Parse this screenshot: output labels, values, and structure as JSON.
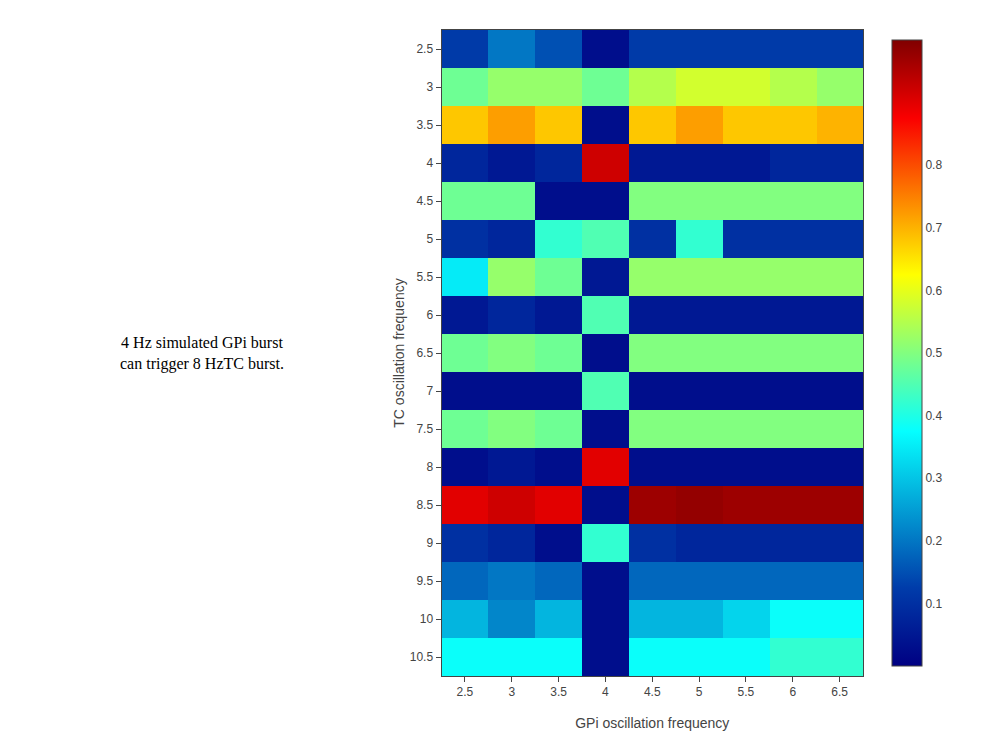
{
  "chart_data": {
    "type": "heatmap",
    "xlabel": "GPi oscillation frequency",
    "ylabel": "TC oscillation frequency",
    "annotation": "4 Hz simulated GPi burst\ncan trigger 8 HzTC burst.",
    "x": [
      2.5,
      3.0,
      3.5,
      4.0,
      4.5,
      5.0,
      5.5,
      6.0,
      6.5
    ],
    "y": [
      2.5,
      3.0,
      3.5,
      4.0,
      4.5,
      5.0,
      5.5,
      6.0,
      6.5,
      7.0,
      7.5,
      8.0,
      8.5,
      9.0,
      9.5,
      10.0,
      10.5
    ],
    "values": [
      [
        0.12,
        0.2,
        0.15,
        0.03,
        0.12,
        0.12,
        0.12,
        0.12,
        0.12
      ],
      [
        0.48,
        0.52,
        0.52,
        0.48,
        0.55,
        0.58,
        0.58,
        0.55,
        0.52
      ],
      [
        0.68,
        0.72,
        0.68,
        0.03,
        0.68,
        0.72,
        0.68,
        0.68,
        0.7
      ],
      [
        0.08,
        0.05,
        0.08,
        0.92,
        0.05,
        0.05,
        0.05,
        0.08,
        0.08
      ],
      [
        0.48,
        0.48,
        0.03,
        0.03,
        0.5,
        0.5,
        0.5,
        0.5,
        0.5
      ],
      [
        0.1,
        0.08,
        0.42,
        0.45,
        0.1,
        0.42,
        0.1,
        0.1,
        0.1
      ],
      [
        0.35,
        0.52,
        0.48,
        0.05,
        0.52,
        0.52,
        0.52,
        0.52,
        0.52
      ],
      [
        0.05,
        0.08,
        0.05,
        0.45,
        0.05,
        0.05,
        0.05,
        0.05,
        0.05
      ],
      [
        0.48,
        0.5,
        0.48,
        0.03,
        0.5,
        0.5,
        0.5,
        0.5,
        0.5
      ],
      [
        0.03,
        0.03,
        0.03,
        0.45,
        0.03,
        0.03,
        0.03,
        0.03,
        0.03
      ],
      [
        0.48,
        0.5,
        0.48,
        0.03,
        0.5,
        0.5,
        0.5,
        0.5,
        0.5
      ],
      [
        0.03,
        0.05,
        0.03,
        0.9,
        0.03,
        0.03,
        0.03,
        0.03,
        0.03
      ],
      [
        0.9,
        0.92,
        0.9,
        0.03,
        0.97,
        0.98,
        0.97,
        0.97,
        0.97
      ],
      [
        0.1,
        0.08,
        0.03,
        0.42,
        0.1,
        0.08,
        0.08,
        0.08,
        0.08
      ],
      [
        0.18,
        0.2,
        0.18,
        0.03,
        0.18,
        0.18,
        0.18,
        0.18,
        0.18
      ],
      [
        0.28,
        0.22,
        0.28,
        0.03,
        0.28,
        0.28,
        0.32,
        0.38,
        0.38
      ],
      [
        0.38,
        0.38,
        0.38,
        0.03,
        0.38,
        0.38,
        0.38,
        0.42,
        0.42
      ]
    ],
    "xlim": [
      2.25,
      6.75
    ],
    "xticks": [
      2.5,
      3.0,
      3.5,
      4.0,
      4.5,
      5.0,
      5.5,
      6.0,
      6.5
    ],
    "ylim": [
      10.75,
      2.25
    ],
    "yticks": [
      2.5,
      3.0,
      3.5,
      4.0,
      4.5,
      5.0,
      5.5,
      6.0,
      6.5,
      7.0,
      7.5,
      8.0,
      8.5,
      9.0,
      9.5,
      10.0,
      10.5
    ],
    "colorbar_range": [
      0.0,
      1.0
    ],
    "colorbar_ticks": [
      0.1,
      0.2,
      0.3,
      0.4,
      0.5,
      0.6,
      0.7,
      0.8
    ],
    "color": "jet",
    "grid": false
  }
}
